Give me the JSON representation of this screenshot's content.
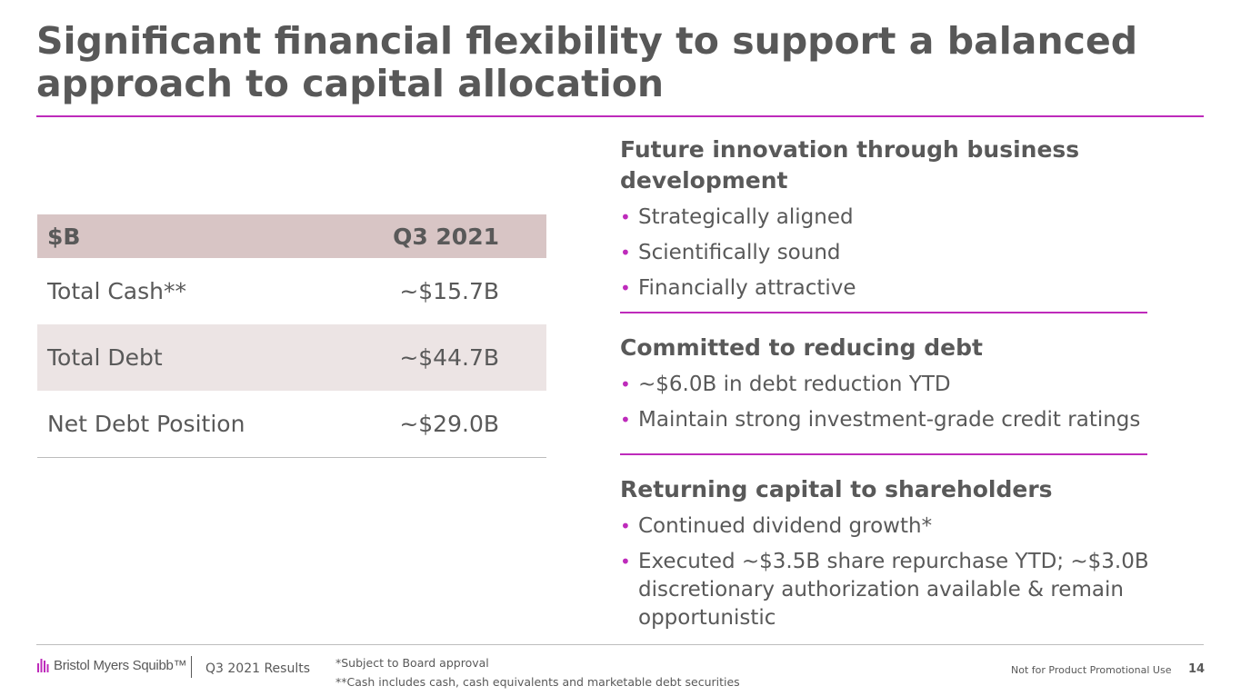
{
  "slide": {
    "title": "Significant financial flexibility to support a balanced approach to capital allocation"
  },
  "table": {
    "header": {
      "label": "$B",
      "period": "Q3 2021"
    },
    "rows": [
      {
        "label": "Total Cash**",
        "value": "~$15.7B"
      },
      {
        "label": "Total Debt",
        "value": "~$44.7B"
      },
      {
        "label": "Net Debt Position",
        "value": "~$29.0B"
      }
    ]
  },
  "sections": [
    {
      "heading": "Future innovation through business development",
      "bullets": [
        "Strategically aligned",
        "Scientifically sound",
        "Financially attractive"
      ]
    },
    {
      "heading": "Committed to reducing debt",
      "bullets": [
        "~$6.0B in debt reduction YTD",
        "Maintain strong investment-grade credit ratings"
      ]
    },
    {
      "heading": "Returning capital to shareholders",
      "bullets": [
        "Continued dividend growth*",
        "Executed ~$3.5B share repurchase YTD; ~$3.0B discretionary authorization available & remain opportunistic"
      ]
    }
  ],
  "footer": {
    "logo_text": "Bristol Myers Squibb™",
    "deck_name": "Q3 2021 Results",
    "footnote_1": "*Subject to Board approval",
    "footnote_2": "**Cash includes cash, cash equivalents and marketable debt securities",
    "promo_notice": "Not for Product Promotional Use",
    "page_number": "14"
  },
  "colors": {
    "accent": "#be2bbb",
    "table_header": "#d8c5c5",
    "table_shade": "#ece4e4",
    "text": "#595959"
  },
  "icons": {
    "logo": "bms-logo-icon",
    "bullet": "bullet-dot-icon"
  }
}
